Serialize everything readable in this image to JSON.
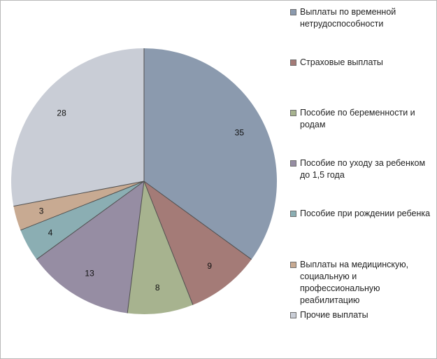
{
  "chart_data": {
    "type": "pie",
    "title": "",
    "start_angle_deg": 0,
    "direction": "clockwise",
    "show_data_labels": true,
    "legend_position": "right",
    "slices": [
      {
        "label": "Выплаты по временной нетрудоспособности",
        "value": 35,
        "color": "#8B9AAE"
      },
      {
        "label": "Страховые выплаты",
        "value": 9,
        "color": "#A47B77"
      },
      {
        "label": "Пособие по беременности и родам",
        "value": 8,
        "color": "#A7B38F"
      },
      {
        "label": "Пособие по уходу за ребенком до 1,5 года",
        "value": 13,
        "color": "#968DA3"
      },
      {
        "label": "Пособие при рождении ребенка",
        "value": 4,
        "color": "#8BAEB3"
      },
      {
        "label": "Выплаты на медицинскую, социальную и профессиональную реабилитацию",
        "value": 3,
        "color": "#C8AA92"
      },
      {
        "label": "Прочие выплаты",
        "value": 28,
        "color": "#C9CDD6"
      }
    ]
  }
}
